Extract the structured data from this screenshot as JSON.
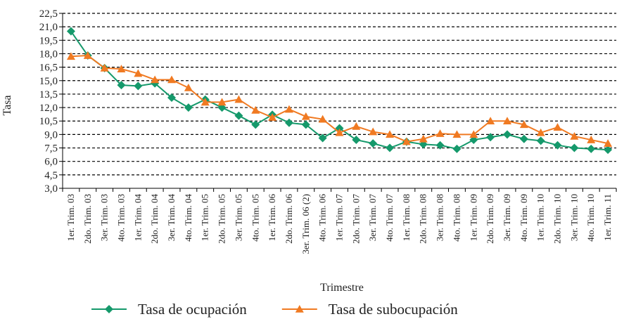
{
  "chart_data": {
    "type": "line",
    "y_label": "Tasa",
    "x_label": "Trimestre",
    "categories": [
      "1er. Trim. 03",
      "2do. Trim. 03",
      "3er. Trim. 03",
      "4to. Trim. 03",
      "1er. Trim. 04",
      "2do. Trim. 04",
      "3er. Trim. 04",
      "4to. Trim. 04",
      "1er. Trim. 05",
      "2do. Trim. 05",
      "3er. Trim. 05",
      "4to. Trim. 05",
      "1er. Trim. 06",
      "2do. Trim. 06",
      "3er. Trim. 06 (2)",
      "4to. Trim. 06",
      "1er. Trim. 07",
      "2do. Trim. 07",
      "3er. Trim. 07",
      "4to. Trim. 07",
      "1er. Trim. 08",
      "2do. Trim. 08",
      "3er. Trim. 08",
      "4to. Trim. 08",
      "1er. Trim. 09",
      "2do. Trim. 09",
      "3er. Trim. 09",
      "4to. Trim. 09",
      "1er. Trim. 10",
      "2do. Trim. 10",
      "3er. Trim. 10",
      "4to. Trim. 10",
      "1er. Trim. 11"
    ],
    "series": [
      {
        "name": "Tasa de ocupación",
        "color": "#15996b",
        "marker": "diamond",
        "values": [
          20.5,
          17.8,
          16.4,
          14.5,
          14.4,
          14.7,
          13.1,
          12.0,
          12.9,
          12.0,
          11.1,
          10.1,
          11.2,
          10.3,
          10.1,
          8.6,
          9.7,
          8.4,
          8.0,
          7.5,
          8.2,
          7.9,
          7.8,
          7.4,
          8.4,
          8.7,
          9.0,
          8.5,
          8.3,
          7.8,
          7.5,
          7.4,
          7.3
        ]
      },
      {
        "name": "Tasa de subocupación",
        "color": "#f07a22",
        "marker": "triangle",
        "values": [
          17.7,
          17.8,
          16.4,
          16.3,
          15.8,
          15.1,
          15.1,
          14.2,
          12.6,
          12.6,
          12.9,
          11.7,
          10.9,
          11.8,
          11.0,
          10.7,
          9.2,
          9.9,
          9.3,
          9.0,
          8.2,
          8.5,
          9.1,
          9.0,
          9.0,
          10.5,
          10.5,
          10.1,
          9.2,
          9.8,
          8.8,
          8.4,
          8.0
        ]
      }
    ],
    "ylim": [
      3.0,
      22.5
    ],
    "yticks": [
      {
        "value": 3.0,
        "label": "3,0"
      },
      {
        "value": 4.5,
        "label": "4,5"
      },
      {
        "value": 6.0,
        "label": "6,0"
      },
      {
        "value": 7.5,
        "label": "7,5"
      },
      {
        "value": 9.0,
        "label": "9,0"
      },
      {
        "value": 10.5,
        "label": "10,5"
      },
      {
        "value": 12.0,
        "label": "12,0"
      },
      {
        "value": 13.5,
        "label": "13,5"
      },
      {
        "value": 15.0,
        "label": "15,0"
      },
      {
        "value": 16.5,
        "label": "16,5"
      },
      {
        "value": 18.0,
        "label": "18,0"
      },
      {
        "value": 19.5,
        "label": "19,5"
      },
      {
        "value": 21.0,
        "label": "21,0"
      },
      {
        "value": 22.5,
        "label": "22,5"
      }
    ],
    "grid": true,
    "legend": "bottom"
  }
}
